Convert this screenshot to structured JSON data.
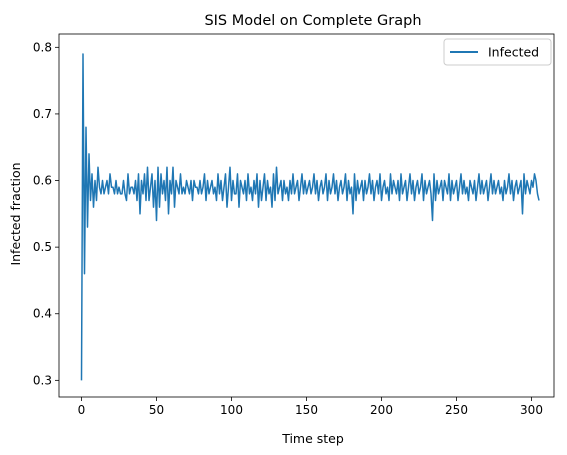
{
  "chart_data": {
    "type": "line",
    "title": "SIS Model on Complete Graph",
    "xlabel": "Time step",
    "ylabel": "Infected fraction",
    "xlim": [
      -15,
      315
    ],
    "ylim": [
      0.275,
      0.82
    ],
    "xticks": [
      0,
      50,
      100,
      150,
      200,
      250,
      300
    ],
    "xtick_labels": [
      "0",
      "50",
      "100",
      "150",
      "200",
      "250",
      "300"
    ],
    "yticks": [
      0.3,
      0.4,
      0.5,
      0.6,
      0.7,
      0.8
    ],
    "ytick_labels": [
      "0.3",
      "0.4",
      "0.5",
      "0.6",
      "0.7",
      "0.8"
    ],
    "grid": false,
    "legend": {
      "position": "top-right"
    },
    "series": [
      {
        "name": "Infected",
        "color": "#1f77b4",
        "x_start": 0,
        "x_step": 1,
        "values": [
          0.3,
          0.79,
          0.46,
          0.68,
          0.53,
          0.64,
          0.57,
          0.61,
          0.56,
          0.6,
          0.57,
          0.62,
          0.59,
          0.58,
          0.6,
          0.58,
          0.59,
          0.6,
          0.58,
          0.61,
          0.59,
          0.59,
          0.58,
          0.6,
          0.58,
          0.59,
          0.58,
          0.58,
          0.6,
          0.58,
          0.57,
          0.61,
          0.58,
          0.59,
          0.59,
          0.58,
          0.6,
          0.57,
          0.61,
          0.55,
          0.6,
          0.58,
          0.61,
          0.57,
          0.62,
          0.57,
          0.59,
          0.61,
          0.56,
          0.6,
          0.54,
          0.62,
          0.56,
          0.61,
          0.58,
          0.6,
          0.57,
          0.62,
          0.55,
          0.6,
          0.58,
          0.62,
          0.56,
          0.6,
          0.59,
          0.58,
          0.61,
          0.58,
          0.59,
          0.58,
          0.6,
          0.59,
          0.58,
          0.6,
          0.57,
          0.6,
          0.59,
          0.59,
          0.58,
          0.6,
          0.58,
          0.59,
          0.61,
          0.57,
          0.6,
          0.58,
          0.59,
          0.6,
          0.58,
          0.59,
          0.57,
          0.61,
          0.58,
          0.6,
          0.57,
          0.59,
          0.61,
          0.56,
          0.59,
          0.62,
          0.57,
          0.6,
          0.58,
          0.58,
          0.61,
          0.56,
          0.6,
          0.59,
          0.58,
          0.6,
          0.57,
          0.61,
          0.58,
          0.59,
          0.57,
          0.6,
          0.58,
          0.61,
          0.56,
          0.6,
          0.57,
          0.59,
          0.61,
          0.57,
          0.6,
          0.58,
          0.59,
          0.56,
          0.61,
          0.57,
          0.62,
          0.58,
          0.59,
          0.6,
          0.57,
          0.6,
          0.58,
          0.59,
          0.57,
          0.6,
          0.58,
          0.61,
          0.58,
          0.59,
          0.6,
          0.57,
          0.59,
          0.61,
          0.58,
          0.6,
          0.58,
          0.59,
          0.6,
          0.58,
          0.59,
          0.61,
          0.58,
          0.6,
          0.57,
          0.59,
          0.6,
          0.58,
          0.59,
          0.61,
          0.57,
          0.6,
          0.58,
          0.59,
          0.61,
          0.58,
          0.6,
          0.57,
          0.59,
          0.6,
          0.58,
          0.59,
          0.61,
          0.57,
          0.6,
          0.58,
          0.59,
          0.55,
          0.61,
          0.57,
          0.6,
          0.58,
          0.59,
          0.6,
          0.57,
          0.6,
          0.58,
          0.59,
          0.61,
          0.58,
          0.6,
          0.57,
          0.59,
          0.6,
          0.58,
          0.61,
          0.57,
          0.59,
          0.6,
          0.58,
          0.59,
          0.57,
          0.61,
          0.58,
          0.6,
          0.59,
          0.58,
          0.6,
          0.57,
          0.61,
          0.58,
          0.59,
          0.6,
          0.57,
          0.59,
          0.61,
          0.58,
          0.6,
          0.57,
          0.59,
          0.6,
          0.58,
          0.59,
          0.61,
          0.57,
          0.6,
          0.58,
          0.59,
          0.6,
          0.58,
          0.54,
          0.61,
          0.57,
          0.6,
          0.58,
          0.59,
          0.6,
          0.57,
          0.6,
          0.59,
          0.58,
          0.61,
          0.57,
          0.6,
          0.58,
          0.59,
          0.6,
          0.57,
          0.59,
          0.61,
          0.58,
          0.6,
          0.58,
          0.59,
          0.57,
          0.6,
          0.59,
          0.58,
          0.6,
          0.57,
          0.59,
          0.61,
          0.58,
          0.6,
          0.58,
          0.59,
          0.6,
          0.57,
          0.59,
          0.61,
          0.58,
          0.6,
          0.58,
          0.59,
          0.6,
          0.58,
          0.59,
          0.57,
          0.6,
          0.58,
          0.59,
          0.61,
          0.58,
          0.6,
          0.57,
          0.59,
          0.6,
          0.58,
          0.59,
          0.6,
          0.55,
          0.61,
          0.58,
          0.6,
          0.59,
          0.58,
          0.6,
          0.59,
          0.61,
          0.6,
          0.58,
          0.57
        ]
      }
    ]
  }
}
